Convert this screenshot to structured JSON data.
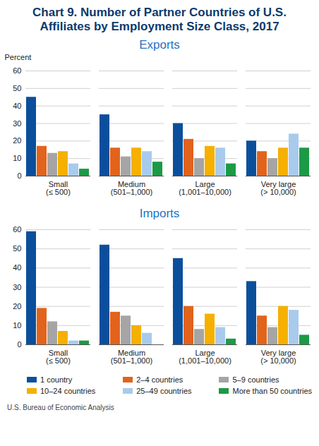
{
  "title": "Chart 9. Number of Partner Countries of U.S. Affiliates by Employment Size Class, 2017",
  "source": "U.S. Bureau of Economic Analysis",
  "chart_data": [
    {
      "type": "bar",
      "title": "Exports",
      "y_label": "Percent",
      "categories": [
        "Small\n(≤ 500)",
        "Medium\n(501–1,000)",
        "Large\n(1,001–10,000)",
        "Very large\n(> 10,000)"
      ],
      "series": [
        {
          "name": "1 country",
          "color": "#0b4f9c",
          "values": [
            45,
            35,
            30,
            20
          ]
        },
        {
          "name": "2–4 countries",
          "color": "#e2631c",
          "values": [
            17,
            16,
            21,
            14
          ]
        },
        {
          "name": "5–9 countries",
          "color": "#a5a5a5",
          "values": [
            13,
            11,
            10,
            10
          ]
        },
        {
          "name": "10–24 countries",
          "color": "#f5b000",
          "values": [
            14,
            16,
            17,
            16
          ]
        },
        {
          "name": "25–49 countries",
          "color": "#a8cbec",
          "values": [
            7,
            14,
            16,
            24
          ]
        },
        {
          "name": "More than 50 countries",
          "color": "#1c9a46",
          "values": [
            4,
            8,
            7,
            16
          ]
        }
      ],
      "ylim": [
        0,
        60
      ],
      "yticks": [
        0,
        10,
        20,
        30,
        40,
        50,
        60
      ],
      "grid": true
    },
    {
      "type": "bar",
      "title": "Imports",
      "categories": [
        "Small\n(≤ 500)",
        "Medium\n(501–1,000)",
        "Large\n(1,001–10,000)",
        "Very large\n(> 10,000)"
      ],
      "series": [
        {
          "name": "1 country",
          "color": "#0b4f9c",
          "values": [
            59,
            52,
            45,
            33
          ]
        },
        {
          "name": "2–4 countries",
          "color": "#e2631c",
          "values": [
            19,
            17,
            20,
            15
          ]
        },
        {
          "name": "5–9 countries",
          "color": "#a5a5a5",
          "values": [
            12,
            15,
            8,
            9
          ]
        },
        {
          "name": "10–24 countries",
          "color": "#f5b000",
          "values": [
            7,
            10,
            16,
            20
          ]
        },
        {
          "name": "25–49 countries",
          "color": "#a8cbec",
          "values": [
            2,
            6,
            9,
            18
          ]
        },
        {
          "name": "More than 50 countries",
          "color": "#1c9a46",
          "values": [
            2,
            0,
            3,
            5
          ]
        }
      ],
      "ylim": [
        0,
        60
      ],
      "yticks": [
        0,
        10,
        20,
        30,
        40,
        50,
        60
      ],
      "grid": true,
      "legend": "bottom"
    }
  ]
}
